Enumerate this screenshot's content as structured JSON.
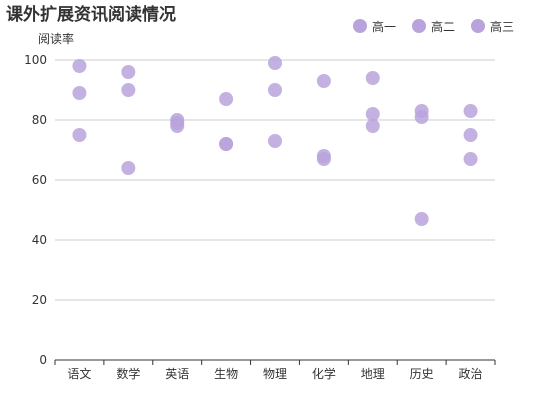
{
  "chart_data": {
    "type": "scatter",
    "title": "课外扩展资讯阅读情况",
    "ylabel": "阅读率",
    "xlabel": "",
    "categories": [
      "语文",
      "数学",
      "英语",
      "生物",
      "物理",
      "化学",
      "地理",
      "历史",
      "政治"
    ],
    "ylim": [
      0,
      100
    ],
    "yticks": [
      0,
      20,
      40,
      60,
      80,
      100
    ],
    "grid": true,
    "legend_position": "top-right",
    "series": [
      {
        "name": "高一",
        "color": "#b9a3dc",
        "values": [
          98,
          90,
          80,
          87,
          99,
          93,
          94,
          83,
          83
        ]
      },
      {
        "name": "高二",
        "color": "#b9a3dc",
        "values": [
          89,
          96,
          79,
          72,
          90,
          68,
          82,
          81,
          75
        ]
      },
      {
        "name": "高三",
        "color": "#b9a3dc",
        "values": [
          75,
          64,
          78,
          72,
          73,
          67,
          78,
          47,
          67
        ]
      }
    ]
  }
}
